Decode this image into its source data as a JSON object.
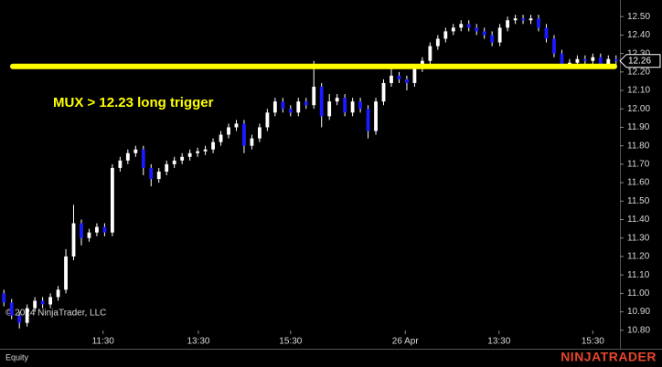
{
  "chart_data": {
    "type": "candlestick",
    "up_color": "#ffffff",
    "down_color": "#1a1aff",
    "background": "#000000",
    "open": [
      11.0,
      10.95,
      10.88,
      10.84,
      10.92,
      10.96,
      10.94,
      10.98,
      11.02,
      11.2,
      11.38,
      11.3,
      11.33,
      11.36,
      11.33,
      11.68,
      11.72,
      11.76,
      11.78,
      11.68,
      11.62,
      11.66,
      11.7,
      11.72,
      11.74,
      11.76,
      11.77,
      11.78,
      11.82,
      11.86,
      11.9,
      11.92,
      11.8,
      11.84,
      11.9,
      11.98,
      12.04,
      12.0,
      11.98,
      12.04,
      12.02,
      12.12,
      11.96,
      12.04,
      12.06,
      11.98,
      12.04,
      12.0,
      11.88,
      12.04,
      12.14,
      12.18,
      12.16,
      12.14,
      12.22,
      12.26,
      12.34,
      12.38,
      12.42,
      12.44,
      12.46,
      12.44,
      12.42,
      12.4,
      12.36,
      12.44,
      12.48,
      12.49,
      12.48,
      12.49,
      12.44,
      12.38,
      12.3,
      12.24,
      12.25,
      12.27,
      12.26,
      12.28,
      12.24,
      12.27
    ],
    "high": [
      11.02,
      10.97,
      10.9,
      10.94,
      10.98,
      10.98,
      11.0,
      11.04,
      11.24,
      11.48,
      11.4,
      11.35,
      11.38,
      11.38,
      11.7,
      11.74,
      11.78,
      11.8,
      11.8,
      11.7,
      11.68,
      11.72,
      11.74,
      11.76,
      11.78,
      11.79,
      11.8,
      11.84,
      11.88,
      11.92,
      11.94,
      11.94,
      11.86,
      11.92,
      12.0,
      12.06,
      12.06,
      12.02,
      12.06,
      12.06,
      12.26,
      12.14,
      12.08,
      12.08,
      12.08,
      12.06,
      12.06,
      12.02,
      12.06,
      12.16,
      12.24,
      12.2,
      12.18,
      12.24,
      12.28,
      12.36,
      12.4,
      12.44,
      12.46,
      12.48,
      12.48,
      12.46,
      12.44,
      12.42,
      12.46,
      12.5,
      12.51,
      12.51,
      12.51,
      12.51,
      12.46,
      12.4,
      12.32,
      12.27,
      12.29,
      12.29,
      12.3,
      12.3,
      12.29,
      12.29
    ],
    "low": [
      10.93,
      10.86,
      10.81,
      10.82,
      10.9,
      10.92,
      10.92,
      10.96,
      11.0,
      11.18,
      11.26,
      11.28,
      11.31,
      11.31,
      11.31,
      11.66,
      11.7,
      11.74,
      11.64,
      11.58,
      11.6,
      11.64,
      11.68,
      11.7,
      11.72,
      11.74,
      11.75,
      11.76,
      11.8,
      11.84,
      11.88,
      11.76,
      11.78,
      11.82,
      11.88,
      11.96,
      11.98,
      11.96,
      11.96,
      12.0,
      12.0,
      11.9,
      11.94,
      12.02,
      11.96,
      11.96,
      11.98,
      11.84,
      11.86,
      12.02,
      12.12,
      12.14,
      12.1,
      12.12,
      12.2,
      12.24,
      12.32,
      12.36,
      12.4,
      12.42,
      12.42,
      12.4,
      12.38,
      12.34,
      12.34,
      12.42,
      12.46,
      12.46,
      12.46,
      12.42,
      12.36,
      12.28,
      12.22,
      12.22,
      12.23,
      12.24,
      12.24,
      12.22,
      12.22,
      12.24
    ],
    "close": [
      10.95,
      10.88,
      10.84,
      10.92,
      10.96,
      10.94,
      10.98,
      11.02,
      11.2,
      11.38,
      11.3,
      11.33,
      11.36,
      11.33,
      11.68,
      11.72,
      11.76,
      11.78,
      11.68,
      11.62,
      11.66,
      11.7,
      11.72,
      11.74,
      11.76,
      11.77,
      11.78,
      11.82,
      11.86,
      11.9,
      11.92,
      11.8,
      11.84,
      11.9,
      11.98,
      12.04,
      12.0,
      11.98,
      12.04,
      12.02,
      12.12,
      11.96,
      12.04,
      12.06,
      11.98,
      12.04,
      12.0,
      11.88,
      12.04,
      12.14,
      12.18,
      12.16,
      12.14,
      12.22,
      12.26,
      12.34,
      12.38,
      12.42,
      12.44,
      12.46,
      12.44,
      12.42,
      12.4,
      12.36,
      12.44,
      12.48,
      12.49,
      12.48,
      12.49,
      12.44,
      12.38,
      12.3,
      12.24,
      12.25,
      12.27,
      12.26,
      12.28,
      12.24,
      12.27,
      12.26
    ],
    "xlim": [
      -0.5,
      79.5
    ],
    "xticks": [
      {
        "value": 12.8,
        "label": "11:30"
      },
      {
        "value": 25.1,
        "label": "13:30"
      },
      {
        "value": 37.0,
        "label": "15:30"
      },
      {
        "value": 51.8,
        "label": "26 Apr"
      },
      {
        "value": 63.9,
        "label": "13:30"
      },
      {
        "value": 76.0,
        "label": "15:30"
      }
    ],
    "ylim": [
      10.7,
      12.59
    ],
    "yticks": [
      {
        "value": 10.8,
        "label": "10.80"
      },
      {
        "value": 10.9,
        "label": "10.90"
      },
      {
        "value": 11.0,
        "label": "11.00"
      },
      {
        "value": 11.1,
        "label": "11.10"
      },
      {
        "value": 11.2,
        "label": "11.20"
      },
      {
        "value": 11.3,
        "label": "11.30"
      },
      {
        "value": 11.4,
        "label": "11.40"
      },
      {
        "value": 11.5,
        "label": "11.50"
      },
      {
        "value": 11.6,
        "label": "11.60"
      },
      {
        "value": 11.7,
        "label": "11.70"
      },
      {
        "value": 11.8,
        "label": "11.80"
      },
      {
        "value": 11.9,
        "label": "11.90"
      },
      {
        "value": 12.0,
        "label": "12.00"
      },
      {
        "value": 12.1,
        "label": "12.10"
      },
      {
        "value": 12.2,
        "label": "12.20"
      },
      {
        "value": 12.3,
        "label": "12.30"
      },
      {
        "value": 12.4,
        "label": "12.40"
      },
      {
        "value": 12.5,
        "label": "12.50"
      }
    ],
    "hline": {
      "value": 12.23,
      "color": "#ffff00"
    },
    "annotation": "MUX > 12.23 long trigger",
    "last_price": {
      "value": 12.26,
      "label": "12.26"
    },
    "copyright": "© 2024 NinjaTrader, LLC",
    "instrument_type": "Equity",
    "brand": "NINJATRADER"
  }
}
